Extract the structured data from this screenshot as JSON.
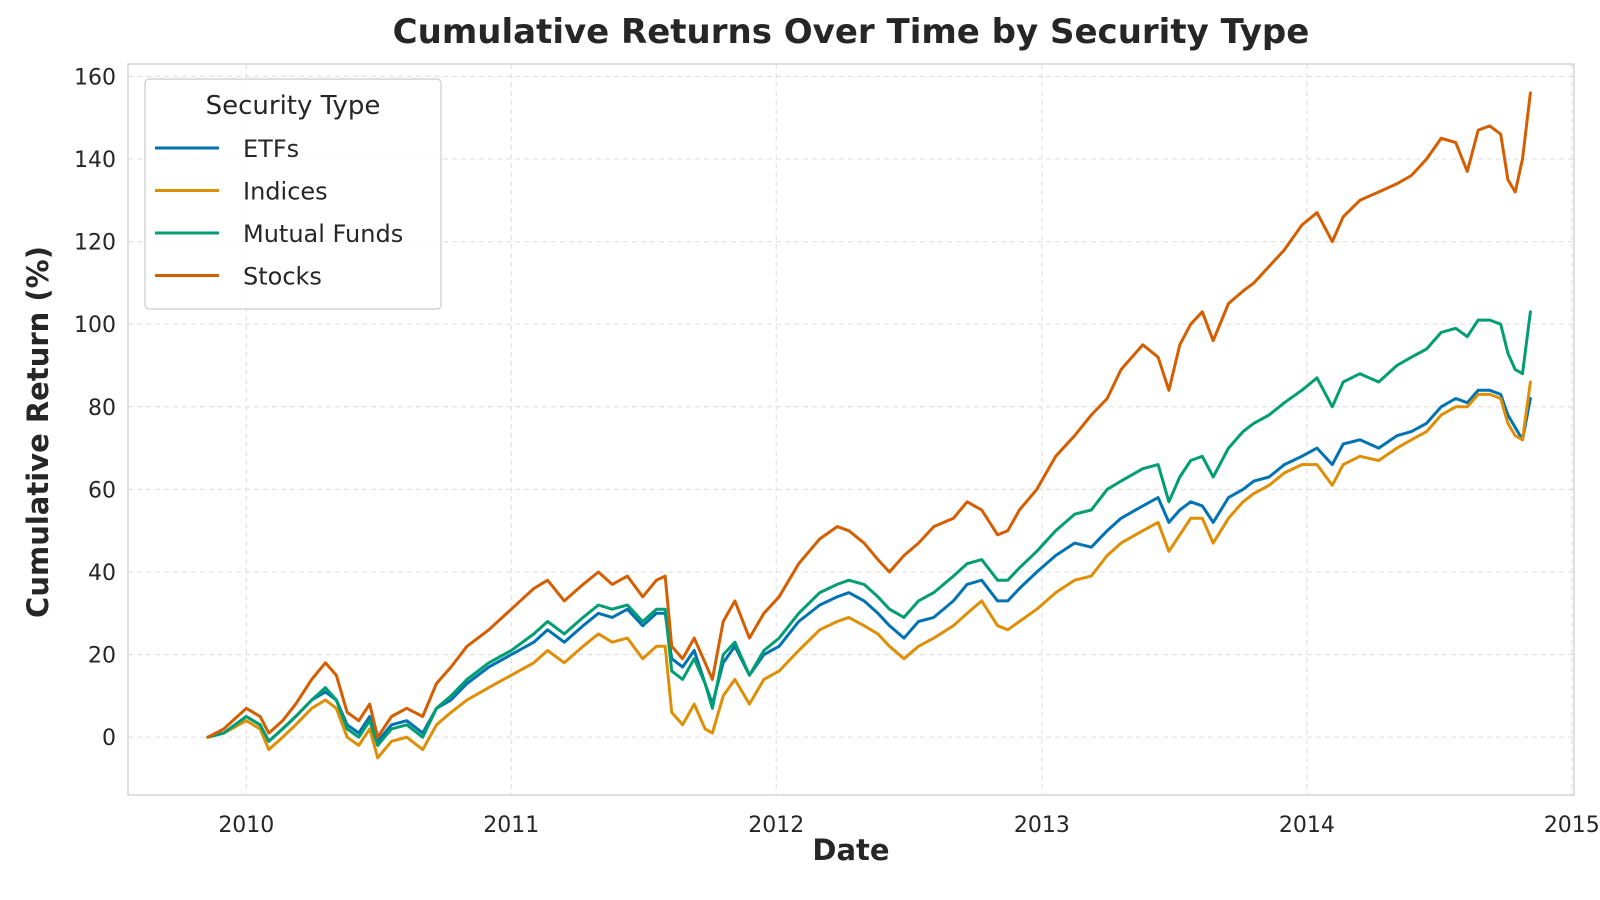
{
  "chart_data": {
    "type": "line",
    "title": "Cumulative Returns Over Time by Security Type",
    "xlabel": "Date",
    "ylabel": "Cumulative Return (%)",
    "xlim": [
      "2009-07-22",
      "2015-01-04"
    ],
    "ylim": [
      -14,
      163
    ],
    "x_ticks": [
      "2010",
      "2011",
      "2012",
      "2013",
      "2014",
      "2015"
    ],
    "y_ticks": [
      0,
      20,
      40,
      60,
      80,
      100,
      120,
      140,
      160
    ],
    "grid": true,
    "legend": {
      "title": "Security Type",
      "placement": "top-left"
    },
    "x": [
      "2009-11-09",
      "2009-12-01",
      "2010-01-01",
      "2010-01-20",
      "2010-02-01",
      "2010-02-20",
      "2010-03-10",
      "2010-04-01",
      "2010-04-20",
      "2010-05-05",
      "2010-05-20",
      "2010-06-05",
      "2010-06-20",
      "2010-07-01",
      "2010-07-20",
      "2010-08-10",
      "2010-09-01",
      "2010-09-20",
      "2010-10-10",
      "2010-11-01",
      "2010-12-01",
      "2011-01-01",
      "2011-02-01",
      "2011-02-20",
      "2011-03-15",
      "2011-04-10",
      "2011-05-01",
      "2011-05-20",
      "2011-06-10",
      "2011-07-01",
      "2011-07-20",
      "2011-08-01",
      "2011-08-10",
      "2011-08-25",
      "2011-09-10",
      "2011-09-25",
      "2011-10-05",
      "2011-10-20",
      "2011-11-05",
      "2011-11-25",
      "2011-12-15",
      "2012-01-05",
      "2012-02-01",
      "2012-03-01",
      "2012-03-25",
      "2012-04-10",
      "2012-05-01",
      "2012-05-20",
      "2012-06-05",
      "2012-06-25",
      "2012-07-15",
      "2012-08-05",
      "2012-09-01",
      "2012-09-20",
      "2012-10-10",
      "2012-11-01",
      "2012-11-15",
      "2012-12-01",
      "2012-12-25",
      "2013-01-20",
      "2013-02-15",
      "2013-03-10",
      "2013-04-01",
      "2013-04-20",
      "2013-05-20",
      "2013-06-10",
      "2013-06-25",
      "2013-07-10",
      "2013-07-25",
      "2013-08-10",
      "2013-08-25",
      "2013-09-15",
      "2013-10-05",
      "2013-10-20",
      "2013-11-10",
      "2013-12-01",
      "2013-12-25",
      "2014-01-15",
      "2014-02-05",
      "2014-02-20",
      "2014-03-15",
      "2014-04-10",
      "2014-05-05",
      "2014-05-25",
      "2014-06-15",
      "2014-07-05",
      "2014-07-25",
      "2014-08-10",
      "2014-08-25",
      "2014-09-10",
      "2014-09-25",
      "2014-10-05",
      "2014-10-15",
      "2014-10-25",
      "2014-11-05"
    ],
    "series": [
      {
        "name": "ETFs",
        "color": "#0173b2",
        "values": [
          0,
          1,
          5,
          3,
          -1,
          2,
          5,
          9,
          11,
          9,
          3,
          1,
          5,
          -1,
          3,
          4,
          1,
          7,
          9,
          13,
          17,
          20,
          23,
          26,
          23,
          27,
          30,
          29,
          31,
          27,
          30,
          30,
          19,
          17,
          21,
          13,
          8,
          18,
          22,
          15,
          20,
          22,
          28,
          32,
          34,
          35,
          33,
          30,
          27,
          24,
          28,
          29,
          33,
          37,
          38,
          33,
          33,
          36,
          40,
          44,
          47,
          46,
          50,
          53,
          56,
          58,
          52,
          55,
          57,
          56,
          52,
          58,
          60,
          62,
          63,
          66,
          68,
          70,
          66,
          71,
          72,
          70,
          73,
          74,
          76,
          80,
          82,
          81,
          84,
          84,
          83,
          78,
          75,
          72,
          82
        ]
      },
      {
        "name": "Indices",
        "color": "#de8f05",
        "values": [
          0,
          1,
          4,
          2,
          -3,
          0,
          3,
          7,
          9,
          7,
          0,
          -2,
          2,
          -5,
          -1,
          0,
          -3,
          3,
          6,
          9,
          12,
          15,
          18,
          21,
          18,
          22,
          25,
          23,
          24,
          19,
          22,
          22,
          6,
          3,
          8,
          2,
          1,
          10,
          14,
          8,
          14,
          16,
          21,
          26,
          28,
          29,
          27,
          25,
          22,
          19,
          22,
          24,
          27,
          30,
          33,
          27,
          26,
          28,
          31,
          35,
          38,
          39,
          44,
          47,
          50,
          52,
          45,
          49,
          53,
          53,
          47,
          53,
          57,
          59,
          61,
          64,
          66,
          66,
          61,
          66,
          68,
          67,
          70,
          72,
          74,
          78,
          80,
          80,
          83,
          83,
          82,
          76,
          73,
          72,
          86
        ]
      },
      {
        "name": "Mutual Funds",
        "color": "#029e73",
        "values": [
          0,
          1,
          5,
          3,
          -1,
          2,
          5,
          9,
          12,
          9,
          2,
          0,
          4,
          -2,
          2,
          3,
          0,
          7,
          10,
          14,
          18,
          21,
          25,
          28,
          25,
          29,
          32,
          31,
          32,
          28,
          31,
          31,
          16,
          14,
          19,
          13,
          7,
          20,
          23,
          15,
          21,
          24,
          30,
          35,
          37,
          38,
          37,
          34,
          31,
          29,
          33,
          35,
          39,
          42,
          43,
          38,
          38,
          41,
          45,
          50,
          54,
          55,
          60,
          62,
          65,
          66,
          57,
          63,
          67,
          68,
          63,
          70,
          74,
          76,
          78,
          81,
          84,
          87,
          80,
          86,
          88,
          86,
          90,
          92,
          94,
          98,
          99,
          97,
          101,
          101,
          100,
          93,
          89,
          88,
          103
        ]
      },
      {
        "name": "Stocks",
        "color": "#d55e00",
        "values": [
          0,
          2,
          7,
          5,
          1,
          4,
          8,
          14,
          18,
          15,
          6,
          4,
          8,
          0,
          5,
          7,
          5,
          13,
          17,
          22,
          26,
          31,
          36,
          38,
          33,
          37,
          40,
          37,
          39,
          34,
          38,
          39,
          22,
          19,
          24,
          18,
          14,
          28,
          33,
          24,
          30,
          34,
          42,
          48,
          51,
          50,
          47,
          43,
          40,
          44,
          47,
          51,
          53,
          57,
          55,
          49,
          50,
          55,
          60,
          68,
          73,
          78,
          82,
          89,
          95,
          92,
          84,
          95,
          100,
          103,
          96,
          105,
          108,
          110,
          114,
          118,
          124,
          127,
          120,
          126,
          130,
          132,
          134,
          136,
          140,
          145,
          144,
          137,
          147,
          148,
          146,
          135,
          132,
          140,
          156
        ]
      }
    ]
  }
}
